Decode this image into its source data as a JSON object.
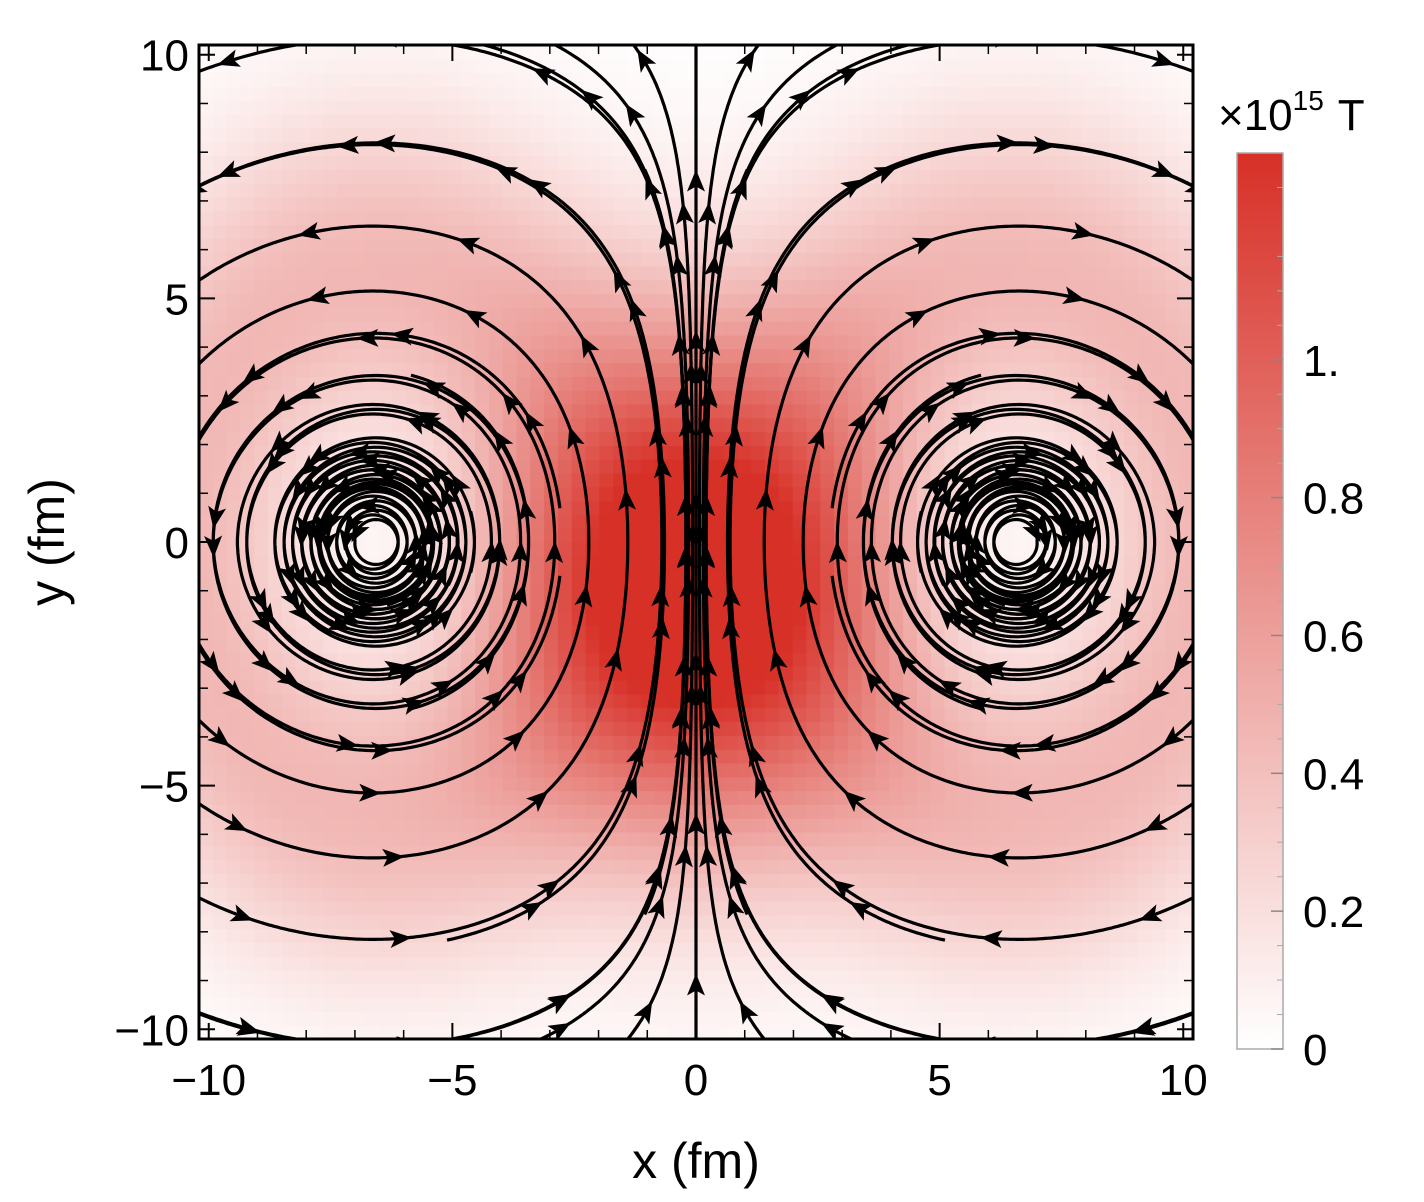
{
  "chart_data": {
    "type": "heatmap",
    "subtype": "density plot with stream lines",
    "title": "",
    "xlabel": "x (fm)",
    "ylabel": "y (fm)",
    "xlim": [
      -10.2,
      10.2
    ],
    "ylim": [
      -10.2,
      10.2
    ],
    "xticks": [
      -10,
      -5,
      0,
      5,
      10
    ],
    "xtick_labels": [
      "−10",
      "−5",
      "0",
      "5",
      "10"
    ],
    "yticks": [
      -10,
      -5,
      0,
      5,
      10
    ],
    "ytick_labels": [
      "−10",
      "−5",
      "0",
      "5",
      "10"
    ],
    "colorbar": {
      "title_prefix": "×10",
      "title_exponent": "15",
      "title_unit": "T",
      "range": [
        0,
        1.3
      ],
      "ticks": [
        0,
        0.2,
        0.4,
        0.6,
        0.8,
        1.0
      ],
      "tick_labels": [
        "0",
        "0.2",
        "0.4",
        "0.6",
        "0.8",
        "1."
      ],
      "color_low": "#ffffff",
      "color_high": "#d73027"
    },
    "field": {
      "description": "in-plane magnetic field of two counter-rotating vortex-like loops; peak magnitude along central y-axis",
      "peak_value": 1.3,
      "peak_location": [
        0,
        -1
      ],
      "vortex_centers": [
        [
          -6.5,
          0
        ],
        [
          6.5,
          0
        ]
      ],
      "vortex_rotation": [
        "counterclockwise",
        "clockwise"
      ],
      "central_flow_direction": "+y"
    },
    "grid": false
  }
}
